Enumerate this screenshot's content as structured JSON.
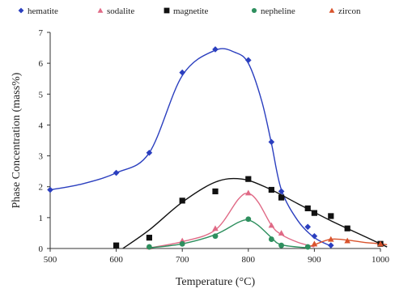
{
  "chart_data": {
    "type": "scatter",
    "title": "",
    "xlabel": "Temperature (°C)",
    "ylabel": "Phase Concentration (mass%)",
    "xlim": [
      500,
      1000
    ],
    "ylim": [
      0,
      7
    ],
    "xticks": [
      "500",
      "600",
      "700",
      "800",
      "900",
      "1000"
    ],
    "yticks": [
      "0",
      "1",
      "2",
      "3",
      "4",
      "5",
      "6",
      "7"
    ],
    "grid": false,
    "legend_position": "top",
    "series": [
      {
        "name": "hematite",
        "marker": "diamond",
        "color": "#2b3fbf",
        "points": [
          [
            500,
            1.9
          ],
          [
            600,
            2.45
          ],
          [
            650,
            3.1
          ],
          [
            700,
            5.7
          ],
          [
            750,
            6.45
          ],
          [
            800,
            6.1
          ],
          [
            835,
            3.45
          ],
          [
            850,
            1.85
          ],
          [
            890,
            0.7
          ],
          [
            900,
            0.4
          ],
          [
            925,
            0.1
          ]
        ],
        "curve": [
          [
            500,
            1.9
          ],
          [
            550,
            2.1
          ],
          [
            600,
            2.45
          ],
          [
            650,
            3.1
          ],
          [
            700,
            5.6
          ],
          [
            750,
            6.42
          ],
          [
            780,
            6.35
          ],
          [
            800,
            6.0
          ],
          [
            820,
            4.8
          ],
          [
            835,
            3.4
          ],
          [
            850,
            1.9
          ],
          [
            875,
            0.9
          ],
          [
            900,
            0.35
          ],
          [
            925,
            0.08
          ]
        ]
      },
      {
        "name": "sodalite",
        "marker": "triangle",
        "color": "#e06a86",
        "points": [
          [
            650,
            0.05
          ],
          [
            700,
            0.25
          ],
          [
            750,
            0.65
          ],
          [
            800,
            1.8
          ],
          [
            835,
            0.75
          ],
          [
            850,
            0.5
          ],
          [
            900,
            0.15
          ]
        ],
        "curve": [
          [
            650,
            0.02
          ],
          [
            700,
            0.22
          ],
          [
            750,
            0.6
          ],
          [
            785,
            1.6
          ],
          [
            800,
            1.78
          ],
          [
            815,
            1.5
          ],
          [
            835,
            0.75
          ],
          [
            850,
            0.45
          ],
          [
            875,
            0.2
          ],
          [
            900,
            0.05
          ]
        ]
      },
      {
        "name": "magnetite",
        "marker": "square",
        "color": "#111111",
        "points": [
          [
            600,
            0.1
          ],
          [
            650,
            0.35
          ],
          [
            700,
            1.55
          ],
          [
            750,
            1.85
          ],
          [
            800,
            2.25
          ],
          [
            835,
            1.9
          ],
          [
            850,
            1.65
          ],
          [
            890,
            1.3
          ],
          [
            900,
            1.15
          ],
          [
            925,
            1.05
          ],
          [
            950,
            0.65
          ],
          [
            1000,
            0.15
          ]
        ],
        "curve": [
          [
            610,
            0.0
          ],
          [
            650,
            0.6
          ],
          [
            700,
            1.5
          ],
          [
            750,
            2.15
          ],
          [
            790,
            2.25
          ],
          [
            830,
            1.95
          ],
          [
            875,
            1.45
          ],
          [
            925,
            0.9
          ],
          [
            975,
            0.4
          ],
          [
            1010,
            0.05
          ]
        ]
      },
      {
        "name": "nepheline",
        "marker": "circle",
        "color": "#2e8f5e",
        "points": [
          [
            650,
            0.05
          ],
          [
            700,
            0.15
          ],
          [
            750,
            0.4
          ],
          [
            800,
            0.95
          ],
          [
            835,
            0.3
          ],
          [
            850,
            0.1
          ],
          [
            890,
            0.05
          ]
        ],
        "curve": [
          [
            650,
            0.02
          ],
          [
            700,
            0.15
          ],
          [
            750,
            0.45
          ],
          [
            785,
            0.85
          ],
          [
            800,
            0.92
          ],
          [
            815,
            0.75
          ],
          [
            835,
            0.35
          ],
          [
            850,
            0.12
          ],
          [
            890,
            0.02
          ]
        ]
      },
      {
        "name": "zircon",
        "marker": "triangle",
        "color": "#d9532c",
        "points": [
          [
            900,
            0.15
          ],
          [
            925,
            0.3
          ],
          [
            950,
            0.25
          ],
          [
            1000,
            0.15
          ]
        ],
        "curve": [
          [
            885,
            0.0
          ],
          [
            900,
            0.12
          ],
          [
            925,
            0.3
          ],
          [
            950,
            0.27
          ],
          [
            975,
            0.2
          ],
          [
            1000,
            0.15
          ],
          [
            1010,
            0.12
          ]
        ]
      }
    ]
  }
}
